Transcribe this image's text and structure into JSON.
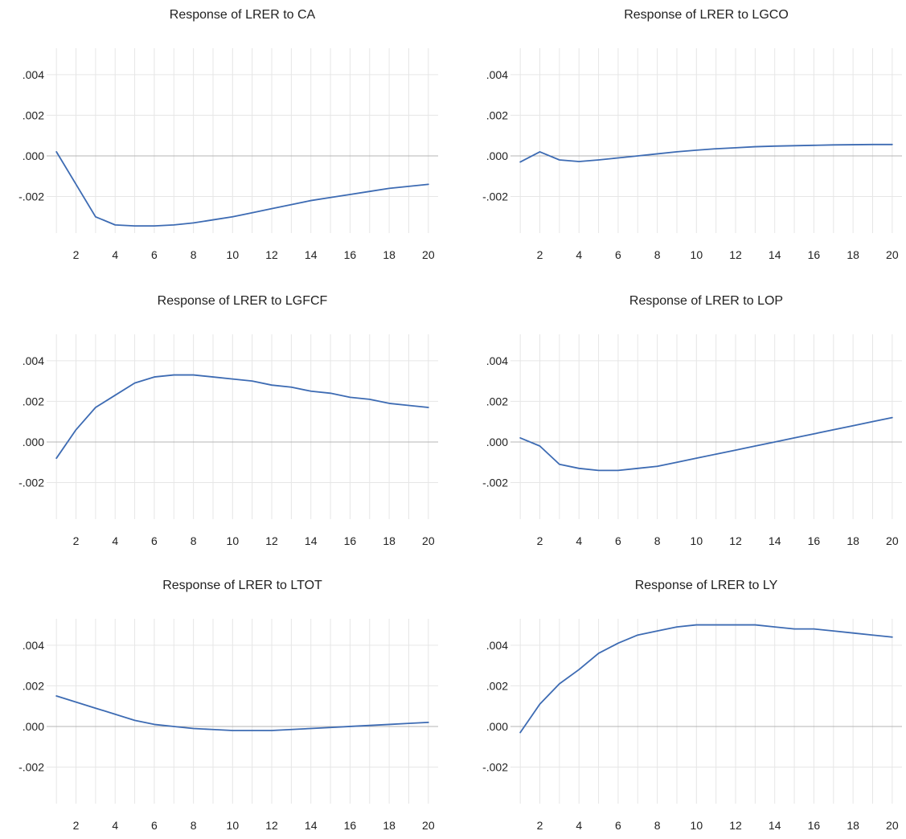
{
  "theme": {
    "line_color": "#3d6bb3",
    "grid_color": "#e6e6e6",
    "zero_line_color": "#b4b4b4"
  },
  "chart_data": [
    {
      "type": "line",
      "title": "Response of LRER to CA",
      "x": [
        1,
        2,
        3,
        4,
        5,
        6,
        7,
        8,
        9,
        10,
        11,
        12,
        13,
        14,
        15,
        16,
        17,
        18,
        19,
        20
      ],
      "values": [
        0.0002,
        -0.0014,
        -0.003,
        -0.0034,
        -0.00345,
        -0.00345,
        -0.0034,
        -0.0033,
        -0.00315,
        -0.003,
        -0.0028,
        -0.0026,
        -0.0024,
        -0.0022,
        -0.00205,
        -0.0019,
        -0.00175,
        -0.0016,
        -0.0015,
        -0.0014
      ],
      "xticks": [
        2,
        4,
        6,
        8,
        10,
        12,
        14,
        16,
        18,
        20
      ],
      "yticks": [
        -0.002,
        0.0,
        0.002,
        0.004
      ],
      "ytick_labels": [
        "-.002",
        ".000",
        ".002",
        ".004"
      ],
      "xlim": [
        0.5,
        20.5
      ],
      "ylim": [
        -0.0038,
        0.0053
      ]
    },
    {
      "type": "line",
      "title": "Response of LRER to LGCO",
      "x": [
        1,
        2,
        3,
        4,
        5,
        6,
        7,
        8,
        9,
        10,
        11,
        12,
        13,
        14,
        15,
        16,
        17,
        18,
        19,
        20
      ],
      "values": [
        -0.0003,
        0.0002,
        -0.0002,
        -0.00028,
        -0.0002,
        -0.0001,
        0.0,
        0.0001,
        0.0002,
        0.00028,
        0.00035,
        0.0004,
        0.00045,
        0.00048,
        0.0005,
        0.00052,
        0.00054,
        0.00055,
        0.00056,
        0.00056
      ],
      "xticks": [
        2,
        4,
        6,
        8,
        10,
        12,
        14,
        16,
        18,
        20
      ],
      "yticks": [
        -0.002,
        0.0,
        0.002,
        0.004
      ],
      "ytick_labels": [
        "-.002",
        ".000",
        ".002",
        ".004"
      ],
      "xlim": [
        0.5,
        20.5
      ],
      "ylim": [
        -0.0038,
        0.0053
      ]
    },
    {
      "type": "line",
      "title": "Response of LRER to LGFCF",
      "x": [
        1,
        2,
        3,
        4,
        5,
        6,
        7,
        8,
        9,
        10,
        11,
        12,
        13,
        14,
        15,
        16,
        17,
        18,
        19,
        20
      ],
      "values": [
        -0.0008,
        0.0006,
        0.0017,
        0.0023,
        0.0029,
        0.0032,
        0.0033,
        0.0033,
        0.0032,
        0.0031,
        0.003,
        0.0028,
        0.0027,
        0.0025,
        0.0024,
        0.0022,
        0.0021,
        0.0019,
        0.0018,
        0.0017
      ],
      "xticks": [
        2,
        4,
        6,
        8,
        10,
        12,
        14,
        16,
        18,
        20
      ],
      "yticks": [
        -0.002,
        0.0,
        0.002,
        0.004
      ],
      "ytick_labels": [
        "-.002",
        ".000",
        ".002",
        ".004"
      ],
      "xlim": [
        0.5,
        20.5
      ],
      "ylim": [
        -0.0038,
        0.0053
      ]
    },
    {
      "type": "line",
      "title": "Response of LRER to LOP",
      "x": [
        1,
        2,
        3,
        4,
        5,
        6,
        7,
        8,
        9,
        10,
        11,
        12,
        13,
        14,
        15,
        16,
        17,
        18,
        19,
        20
      ],
      "values": [
        0.0002,
        -0.0002,
        -0.0011,
        -0.0013,
        -0.0014,
        -0.0014,
        -0.0013,
        -0.0012,
        -0.001,
        -0.0008,
        -0.0006,
        -0.0004,
        -0.0002,
        0.0,
        0.0002,
        0.0004,
        0.0006,
        0.0008,
        0.001,
        0.0012
      ],
      "xticks": [
        2,
        4,
        6,
        8,
        10,
        12,
        14,
        16,
        18,
        20
      ],
      "yticks": [
        -0.002,
        0.0,
        0.002,
        0.004
      ],
      "ytick_labels": [
        "-.002",
        ".000",
        ".002",
        ".004"
      ],
      "xlim": [
        0.5,
        20.5
      ],
      "ylim": [
        -0.0038,
        0.0053
      ]
    },
    {
      "type": "line",
      "title": "Response of LRER to LTOT",
      "x": [
        1,
        2,
        3,
        4,
        5,
        6,
        7,
        8,
        9,
        10,
        11,
        12,
        13,
        14,
        15,
        16,
        17,
        18,
        19,
        20
      ],
      "values": [
        0.0015,
        0.0012,
        0.0009,
        0.0006,
        0.0003,
        0.0001,
        0.0,
        -0.0001,
        -0.00015,
        -0.0002,
        -0.0002,
        -0.0002,
        -0.00015,
        -0.0001,
        -5e-05,
        0.0,
        5e-05,
        0.0001,
        0.00015,
        0.0002
      ],
      "xticks": [
        2,
        4,
        6,
        8,
        10,
        12,
        14,
        16,
        18,
        20
      ],
      "yticks": [
        -0.002,
        0.0,
        0.002,
        0.004
      ],
      "ytick_labels": [
        "-.002",
        ".000",
        ".002",
        ".004"
      ],
      "xlim": [
        0.5,
        20.5
      ],
      "ylim": [
        -0.0038,
        0.0053
      ]
    },
    {
      "type": "line",
      "title": "Response of LRER to LY",
      "x": [
        1,
        2,
        3,
        4,
        5,
        6,
        7,
        8,
        9,
        10,
        11,
        12,
        13,
        14,
        15,
        16,
        17,
        18,
        19,
        20
      ],
      "values": [
        -0.0003,
        0.0011,
        0.0021,
        0.0028,
        0.0036,
        0.0041,
        0.0045,
        0.0047,
        0.0049,
        0.005,
        0.005,
        0.005,
        0.005,
        0.0049,
        0.0048,
        0.0048,
        0.0047,
        0.0046,
        0.0045,
        0.0044
      ],
      "xticks": [
        2,
        4,
        6,
        8,
        10,
        12,
        14,
        16,
        18,
        20
      ],
      "yticks": [
        -0.002,
        0.0,
        0.002,
        0.004
      ],
      "ytick_labels": [
        "-.002",
        ".000",
        ".002",
        ".004"
      ],
      "xlim": [
        0.5,
        20.5
      ],
      "ylim": [
        -0.0038,
        0.0053
      ]
    }
  ]
}
